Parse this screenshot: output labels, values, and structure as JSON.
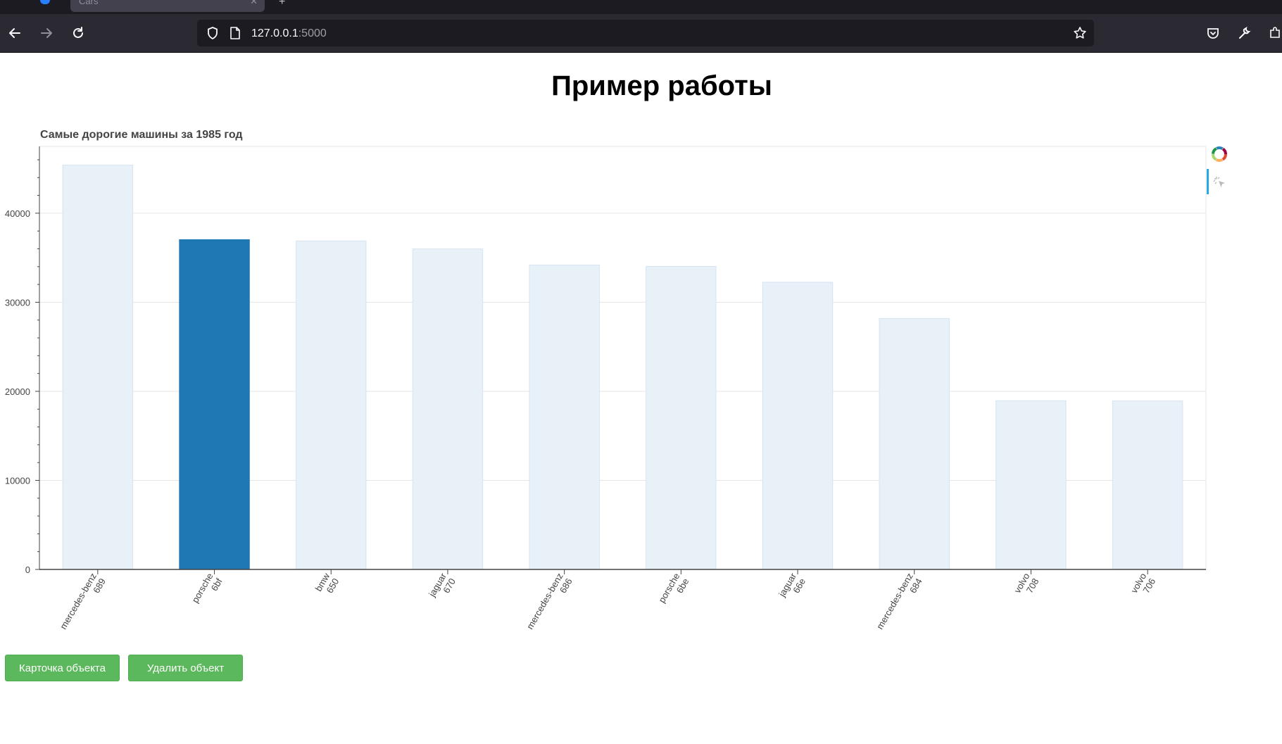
{
  "browser": {
    "tab_title": "Cars",
    "url_host": "127.0.0.1",
    "url_port": ":5000"
  },
  "page": {
    "title": "Пример работы"
  },
  "buttons": {
    "card_label": "Карточка объекта",
    "delete_label": "Удалить объект"
  },
  "icons": {
    "back": "arrow-left-icon",
    "forward": "arrow-right-icon",
    "reload": "reload-icon",
    "shield": "shield-icon",
    "page": "page-icon",
    "bookmark": "star-icon",
    "pocket": "pocket-icon",
    "tools": "wrench-icon",
    "extensions": "puzzle-icon",
    "bokeh_logo": "bokeh-logo-icon",
    "hover_tool": "hover-tool-icon"
  },
  "colors": {
    "selected_bar": "#1f77b4",
    "unselected_bar": "#e8f0f8",
    "button": "#5cb85c"
  },
  "chart_data": {
    "type": "bar",
    "title": "Самые дорогие машины за 1985 год",
    "categories": [
      [
        "mercedes-benz",
        "689"
      ],
      [
        "porsche",
        "6bf"
      ],
      [
        "bmw",
        "650"
      ],
      [
        "jaguar",
        "670"
      ],
      [
        "mercedes-benz",
        "686"
      ],
      [
        "porsche",
        "6be"
      ],
      [
        "jaguar",
        "66e"
      ],
      [
        "mercedes-benz",
        "684"
      ],
      [
        "volvo",
        "708"
      ],
      [
        "volvo",
        "706"
      ]
    ],
    "values": [
      45400,
      37028,
      36880,
      35990,
      34184,
      34028,
      32250,
      28176,
      18950,
      18920
    ],
    "selected_index": 1,
    "ylim": [
      0,
      47500
    ],
    "yticks": [
      0,
      10000,
      20000,
      30000,
      40000
    ],
    "ytick_labels": [
      "0",
      "10000",
      "20000",
      "30000",
      "40000"
    ],
    "grid": true,
    "xlabel": "",
    "ylabel": ""
  }
}
